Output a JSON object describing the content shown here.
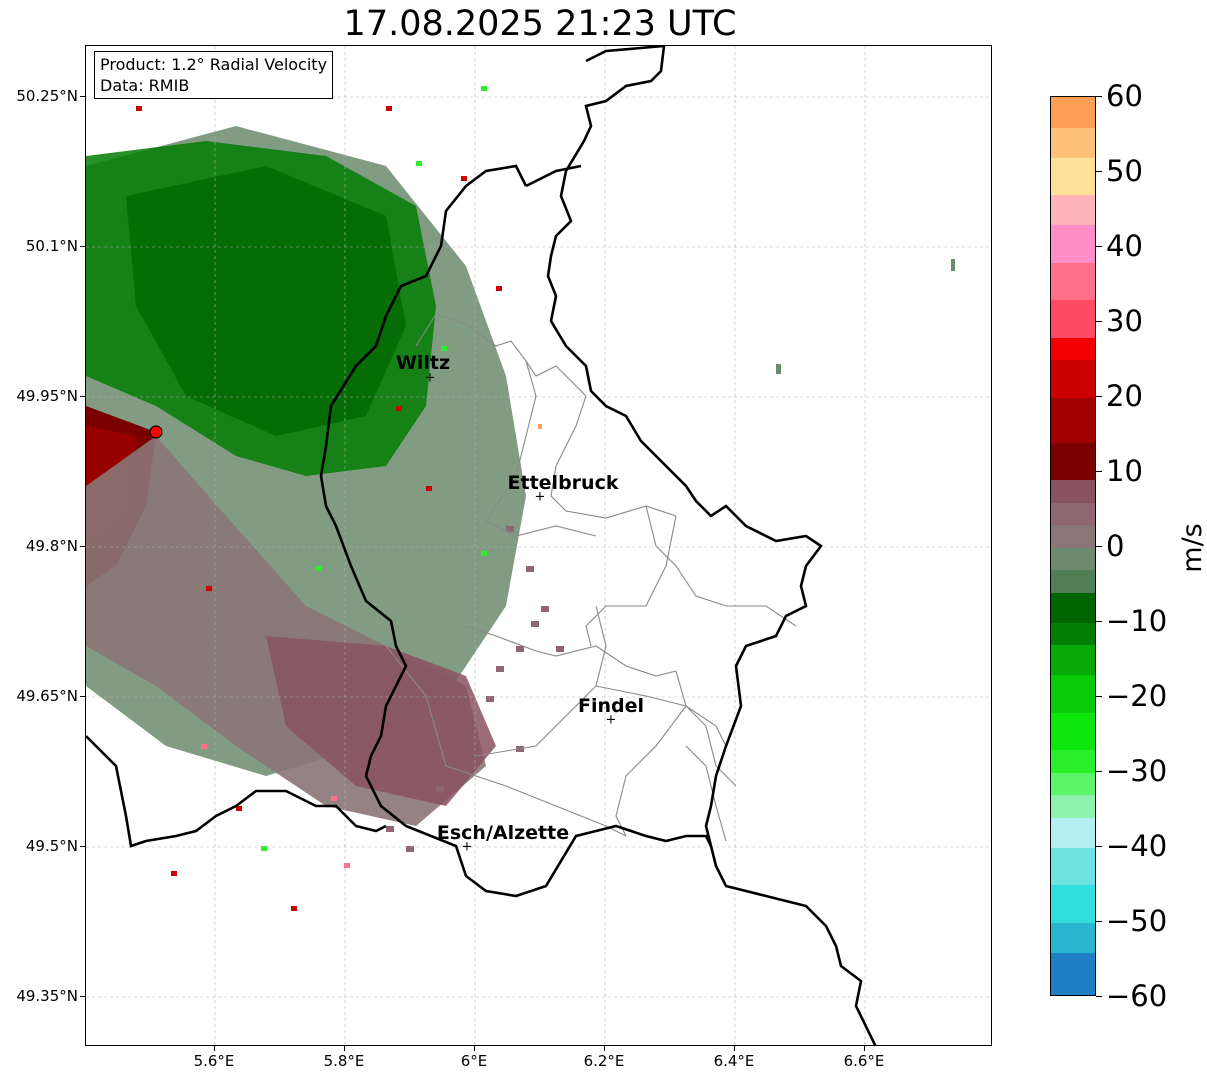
{
  "title": "17.08.2025 21:23 UTC",
  "info": {
    "product": "Product: 1.2° Radial Velocity",
    "data_source": "Data: RMIB"
  },
  "latitude_ticks": [
    "50.25°N",
    "50.1°N",
    "49.95°N",
    "49.8°N",
    "49.65°N",
    "49.5°N",
    "49.35°N"
  ],
  "longitude_ticks": [
    "5.6°E",
    "5.8°E",
    "6°E",
    "6.2°E",
    "6.4°E",
    "6.6°E"
  ],
  "map_extent": {
    "lon_min": 5.4,
    "lon_max": 6.8,
    "lat_min": 49.3,
    "lat_max": 50.3
  },
  "radar_site": {
    "lon": 5.505,
    "lat": 49.915,
    "color": "#ff0000"
  },
  "cities": [
    {
      "name": "Wiltz",
      "lon": 5.93,
      "lat": 49.965
    },
    {
      "name": "Ettelbruck",
      "lon": 6.1,
      "lat": 49.848
    },
    {
      "name": "Findel",
      "lon": 6.21,
      "lat": 49.626
    },
    {
      "name": "Esch/Alzette",
      "lon": 5.99,
      "lat": 49.498
    }
  ],
  "colorbar": {
    "unit": "m/s",
    "min": -60,
    "max": 60,
    "tick_values": [
      60,
      50,
      40,
      30,
      20,
      10,
      0,
      -10,
      -20,
      -30,
      -40,
      -50,
      -60
    ],
    "tick_labels": [
      "60",
      "50",
      "40",
      "30",
      "20",
      "10",
      "0",
      "−10",
      "−20",
      "−30",
      "−40",
      "−50",
      "−60"
    ],
    "stops": [
      {
        "from": -60,
        "to": -54,
        "color": "#1f7fc4"
      },
      {
        "from": -54,
        "to": -50,
        "color": "#2bb6d0"
      },
      {
        "from": -50,
        "to": -45,
        "color": "#30dede"
      },
      {
        "from": -45,
        "to": -40,
        "color": "#6ee3e3"
      },
      {
        "from": -40,
        "to": -36,
        "color": "#b3eef0"
      },
      {
        "from": -36,
        "to": -33,
        "color": "#8cf2ad"
      },
      {
        "from": -33,
        "to": -30,
        "color": "#59f56b"
      },
      {
        "from": -30,
        "to": -27,
        "color": "#2af02a"
      },
      {
        "from": -27,
        "to": -22,
        "color": "#0ee60e"
      },
      {
        "from": -22,
        "to": -17,
        "color": "#0acb0a"
      },
      {
        "from": -17,
        "to": -13,
        "color": "#06a906"
      },
      {
        "from": -13,
        "to": -10,
        "color": "#047d04"
      },
      {
        "from": -10,
        "to": -6,
        "color": "#006400"
      },
      {
        "from": -6,
        "to": -3,
        "color": "#4f7f52"
      },
      {
        "from": -3,
        "to": 0,
        "color": "#6c8b6e"
      },
      {
        "from": 0,
        "to": 3,
        "color": "#8a7676"
      },
      {
        "from": 3,
        "to": 6,
        "color": "#8f6672"
      },
      {
        "from": 6,
        "to": 9,
        "color": "#885260"
      },
      {
        "from": 9,
        "to": 14,
        "color": "#7a0000"
      },
      {
        "from": 14,
        "to": 20,
        "color": "#a00000"
      },
      {
        "from": 20,
        "to": 25,
        "color": "#cc0000"
      },
      {
        "from": 25,
        "to": 28,
        "color": "#f20000"
      },
      {
        "from": 28,
        "to": 33,
        "color": "#ff4a63"
      },
      {
        "from": 33,
        "to": 38,
        "color": "#ff6f88"
      },
      {
        "from": 38,
        "to": 43,
        "color": "#ff8fc6"
      },
      {
        "from": 43,
        "to": 47,
        "color": "#ffb4b8"
      },
      {
        "from": 47,
        "to": 52,
        "color": "#ffe19a"
      },
      {
        "from": 52,
        "to": 56,
        "color": "#ffc078"
      },
      {
        "from": 56,
        "to": 60,
        "color": "#ff9e55"
      }
    ]
  }
}
